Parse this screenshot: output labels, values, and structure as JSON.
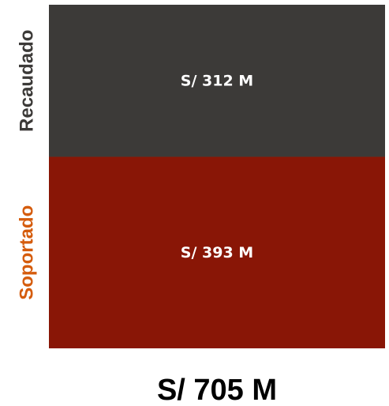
{
  "chart_data": {
    "type": "bar",
    "stacked": true,
    "series": [
      {
        "name": "Recaudado",
        "value": 312,
        "label": "S/ 312 M",
        "color": "#3c3a38",
        "label_color": "#3c3a38"
      },
      {
        "name": "Soportado",
        "value": 393,
        "label": "S/ 393 M",
        "color": "#891606",
        "label_color": "#d55c0d"
      }
    ],
    "total": 705,
    "total_label": "S/ 705 M",
    "grid": false,
    "legend": "none"
  }
}
